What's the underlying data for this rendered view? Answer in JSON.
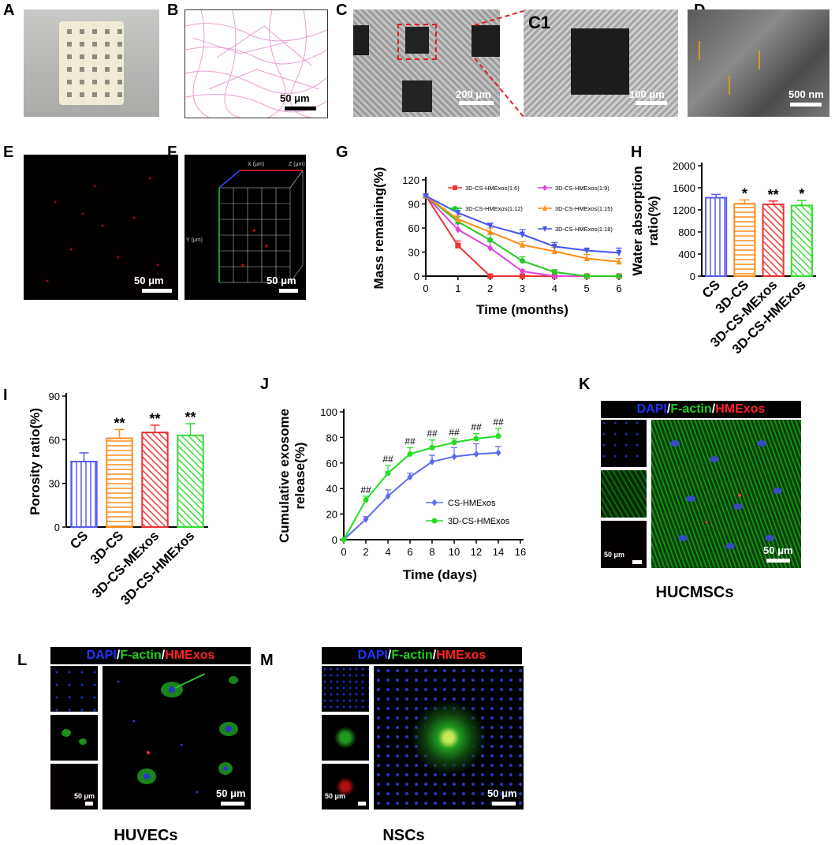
{
  "panels": {
    "A": {
      "label": "A"
    },
    "B": {
      "label": "B",
      "scalebar": "50 μm"
    },
    "C": {
      "label": "C",
      "scalebar": "200 μm"
    },
    "C1": {
      "label": "C1",
      "scalebar": "100 μm"
    },
    "D": {
      "label": "D",
      "scalebar": "500 nm"
    },
    "E": {
      "label": "E",
      "scalebar": "50 μm"
    },
    "F": {
      "label": "F",
      "scalebar": "50 μm",
      "axis_x": "X (μm)",
      "axis_y": "Y (μm)",
      "axis_z": "Z (μm)"
    },
    "G": {
      "label": "G"
    },
    "H": {
      "label": "H"
    },
    "I": {
      "label": "I"
    },
    "J": {
      "label": "J"
    },
    "K": {
      "label": "K",
      "scalebar_small": "50 μm",
      "scalebar_large": "50 μm",
      "caption": "HUCMSCs"
    },
    "L": {
      "label": "L",
      "scalebar_small": "50 μm",
      "scalebar_large": "50 μm",
      "caption": "HUVECs"
    },
    "M": {
      "label": "M",
      "scalebar_small": "50 μm",
      "scalebar_large": "50 μm",
      "caption": "NSCs"
    }
  },
  "stain_title": {
    "dapi": "DAPI",
    "slash": "/",
    "factin": "F-actin",
    "hmexos": "HMExos"
  },
  "chart_data": [
    {
      "panel": "G",
      "type": "line",
      "xlabel": "Time (months)",
      "ylabel": "Mass remaining(%)",
      "x": [
        0,
        1,
        2,
        3,
        4,
        5,
        6
      ],
      "xlim": [
        0,
        6
      ],
      "ylim": [
        0,
        120
      ],
      "yticks": [
        0,
        30,
        60,
        90,
        120
      ],
      "series": [
        {
          "name": "3D-CS-HMExos(1:6)",
          "color": "#ee3333",
          "marker": "square",
          "values": [
            100,
            38,
            0,
            0,
            0,
            0,
            0
          ],
          "err": [
            0,
            6,
            0,
            0,
            0,
            0,
            0
          ]
        },
        {
          "name": "3D-CS-HMExos(1:9)",
          "color": "#dd44dd",
          "marker": "diamond",
          "values": [
            100,
            58,
            35,
            6,
            0,
            0,
            0
          ],
          "err": [
            0,
            7,
            8,
            2,
            0,
            0,
            0
          ]
        },
        {
          "name": "3D-CS-HMExos(1:12)",
          "color": "#22cc22",
          "marker": "circle",
          "values": [
            100,
            68,
            45,
            19,
            5,
            0,
            0
          ],
          "err": [
            0,
            6,
            7,
            5,
            3,
            0,
            0
          ]
        },
        {
          "name": "3D-CS-HMExos(1:15)",
          "color": "#ff8c1a",
          "marker": "triangle",
          "values": [
            100,
            71,
            55,
            39,
            31,
            22,
            18
          ],
          "err": [
            0,
            5,
            5,
            4,
            5,
            5,
            4
          ]
        },
        {
          "name": "3D-CS-HMExos(1:18)",
          "color": "#4455ee",
          "marker": "triangle-down",
          "values": [
            100,
            79,
            63,
            52,
            37,
            32,
            29
          ],
          "err": [
            0,
            6,
            3,
            6,
            5,
            3,
            6
          ]
        }
      ]
    },
    {
      "panel": "H",
      "type": "bar",
      "ylabel": "Water absorption ratio(%)",
      "ylabel_lines": [
        "Water absorption",
        "ratio(%)"
      ],
      "categories": [
        "CS",
        "3D-CS",
        "3D-CS-MExos",
        "3D-CS-HMExos"
      ],
      "values": [
        1420,
        1310,
        1300,
        1280
      ],
      "err": [
        60,
        70,
        60,
        90
      ],
      "sig": [
        "",
        "*",
        "**",
        "*"
      ],
      "colors": [
        "#5b5bf0",
        "#ff8c1a",
        "#ee3333",
        "#33dd33"
      ],
      "ylim": [
        0,
        2000
      ],
      "yticks": [
        0,
        400,
        800,
        1200,
        1600,
        2000
      ]
    },
    {
      "panel": "I",
      "type": "bar",
      "ylabel": "Porosity ratio(%)",
      "categories": [
        "CS",
        "3D-CS",
        "3D-CS-MExos",
        "3D-CS-HMExos"
      ],
      "values": [
        45,
        61,
        65,
        63
      ],
      "err": [
        6,
        6,
        5,
        8
      ],
      "sig": [
        "",
        "**",
        "**",
        "**"
      ],
      "colors": [
        "#5b5bf0",
        "#ff8c1a",
        "#ee3333",
        "#33dd33"
      ],
      "ylim": [
        0,
        90
      ],
      "yticks": [
        0,
        30,
        60,
        90
      ]
    },
    {
      "panel": "J",
      "type": "line",
      "xlabel": "Time (days)",
      "ylabel": "Cumulative exosome release(%)",
      "ylabel_lines": [
        "Cumulative exosome",
        "release(%)"
      ],
      "x": [
        0,
        2,
        4,
        6,
        8,
        10,
        12,
        14
      ],
      "xlim": [
        0,
        16
      ],
      "xticks": [
        0,
        2,
        4,
        6,
        8,
        10,
        12,
        14,
        16
      ],
      "ylim": [
        0,
        100
      ],
      "yticks": [
        0,
        20,
        40,
        60,
        80,
        100
      ],
      "annotation": "##",
      "series": [
        {
          "name": "CS-HMExos",
          "color": "#5b6cf0",
          "marker": "diamond",
          "values": [
            0,
            16,
            34,
            49,
            61,
            65,
            67,
            68
          ],
          "err": [
            0,
            2,
            5,
            3,
            5,
            7,
            8,
            5
          ]
        },
        {
          "name": "3D-CS-HMExos",
          "color": "#22dd22",
          "marker": "circle",
          "values": [
            0,
            31,
            52,
            67,
            72,
            76,
            79,
            81
          ],
          "err": [
            0,
            3,
            6,
            5,
            6,
            3,
            4,
            6
          ]
        }
      ]
    }
  ]
}
